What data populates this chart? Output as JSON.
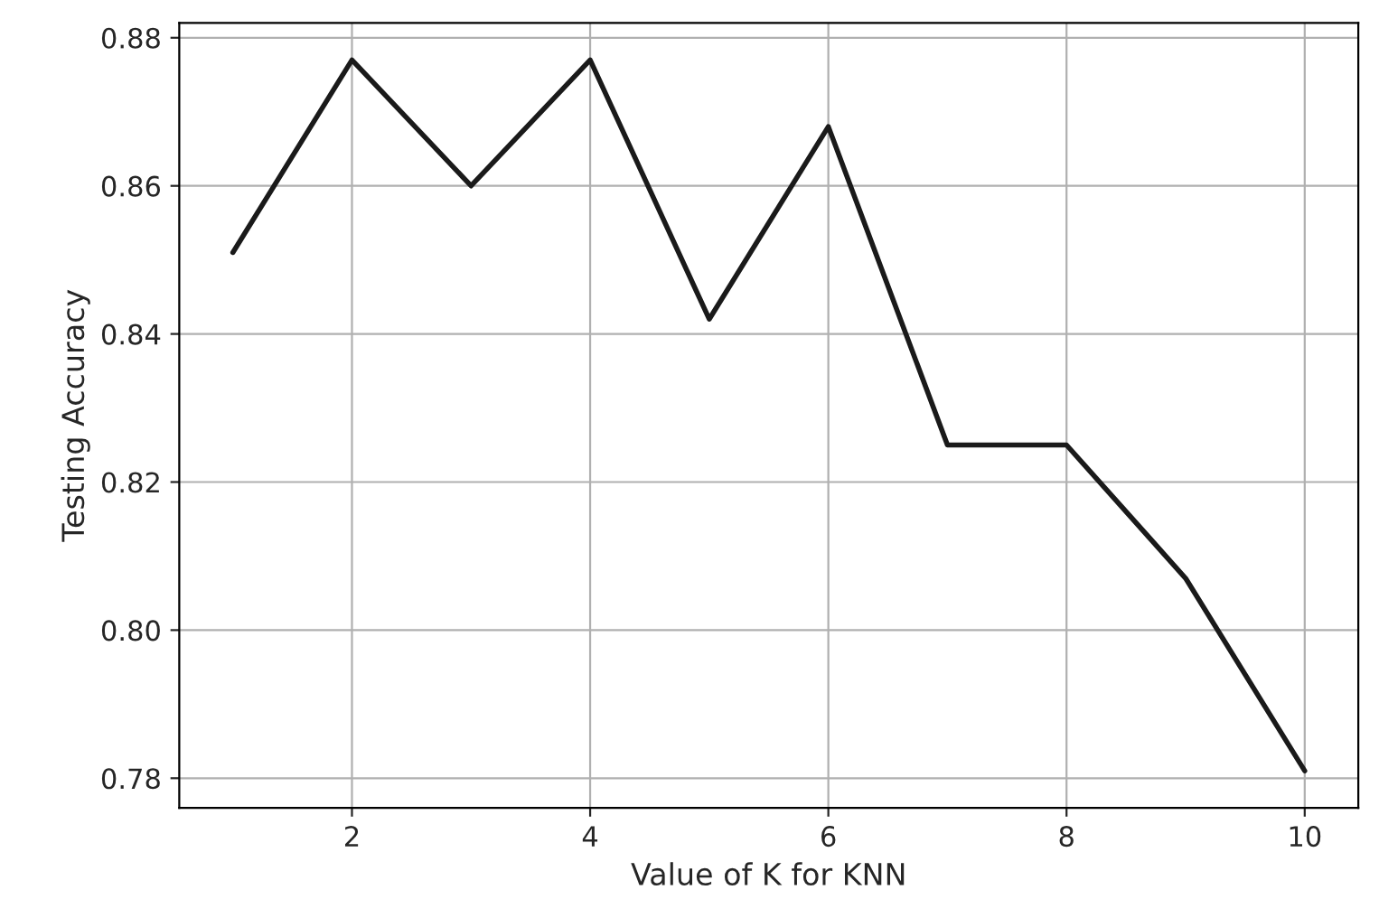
{
  "chart_data": {
    "type": "line",
    "xlabel": "Value of K for KNN",
    "ylabel": "Testing Accuracy",
    "x": [
      1,
      2,
      3,
      4,
      5,
      6,
      7,
      8,
      9,
      10
    ],
    "series": [
      {
        "color": "#1a1a1a",
        "values": [
          0.851,
          0.877,
          0.86,
          0.877,
          0.842,
          0.868,
          0.825,
          0.825,
          0.807,
          0.781
        ]
      }
    ],
    "xlim": [
      0.55,
      10.45
    ],
    "xticks": [
      2,
      4,
      6,
      8,
      10
    ],
    "ylim": [
      0.776,
      0.882
    ],
    "yticks": [
      0.78,
      {
        "value": 0.8,
        "label": "0.80"
      },
      0.82,
      0.84,
      0.86,
      0.88
    ],
    "grid": true,
    "line_style": "solid"
  }
}
